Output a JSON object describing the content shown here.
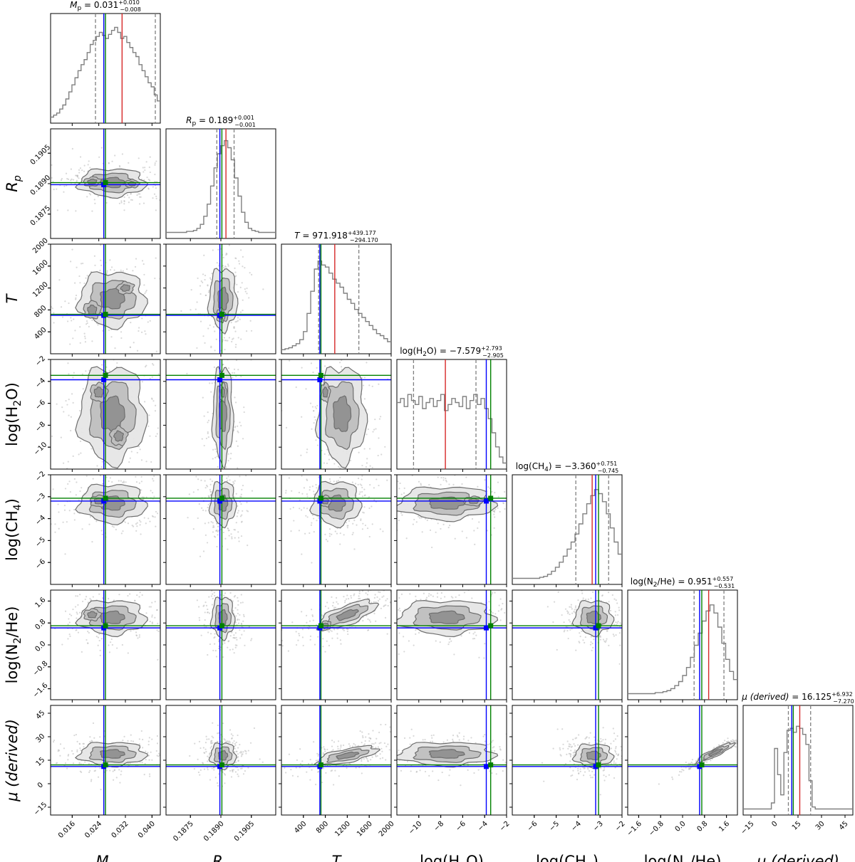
{
  "chart_data": {
    "type": "corner",
    "colors": {
      "hist": "#808080",
      "contour": "#808080",
      "median": "#d62728",
      "quantile": "#808080",
      "truth_blue": "#0000ff",
      "truth_green": "#008000"
    },
    "parameters": [
      {
        "key": "Mp",
        "label": "M",
        "sub": "p",
        "italic": true,
        "range": [
          0.0095,
          0.0425
        ],
        "ticks": [
          0.016,
          0.024,
          0.032,
          0.04
        ],
        "tick_labels": [
          "0.016",
          "0.024",
          "0.032",
          "0.040"
        ],
        "log_scale": false,
        "title_main": "M",
        "title_sub": "p",
        "title_value": "= 0.031",
        "title_plus": "+0.010",
        "title_minus": "−0.008",
        "median": 0.031,
        "q16": 0.023,
        "q84": 0.041,
        "truth_blue": 0.0255,
        "truth_green": 0.026,
        "hist": [
          0.06,
          0.08,
          0.1,
          0.14,
          0.18,
          0.24,
          0.31,
          0.38,
          0.45,
          0.52,
          0.58,
          0.63,
          0.7,
          0.78,
          0.82,
          0.86,
          0.9,
          0.87,
          0.84,
          0.88,
          0.92,
          0.95,
          0.9,
          0.84,
          0.86,
          0.8,
          0.75,
          0.7,
          0.66,
          0.58,
          0.52,
          0.46,
          0.4,
          0.36,
          0.28,
          0.22
        ]
      },
      {
        "key": "Rp",
        "label": "R",
        "sub": "p",
        "italic": true,
        "range": [
          0.1863,
          0.1917
        ],
        "ticks": [
          0.1875,
          0.189,
          0.1905
        ],
        "tick_labels": [
          "0.1875",
          "0.1890",
          "0.1905"
        ],
        "title_main": "R",
        "title_sub": "p",
        "title_value": "= 0.189",
        "title_plus": "+0.001",
        "title_minus": "−0.001",
        "median": 0.18925,
        "q16": 0.1888,
        "q84": 0.18965,
        "truth_blue": 0.18895,
        "truth_green": 0.18905,
        "hist": [
          0.06,
          0.06,
          0.06,
          0.06,
          0.06,
          0.06,
          0.07,
          0.07,
          0.08,
          0.1,
          0.14,
          0.22,
          0.34,
          0.52,
          0.7,
          0.84,
          0.92,
          0.97,
          0.9,
          0.78,
          0.6,
          0.42,
          0.26,
          0.16,
          0.1,
          0.08,
          0.07,
          0.06,
          0.06,
          0.06,
          0.06,
          0.06
        ]
      },
      {
        "key": "T",
        "label": "T",
        "sub": "",
        "italic": true,
        "range": [
          0,
          2000
        ],
        "ticks": [
          400,
          800,
          1200,
          1600,
          2000
        ],
        "tick_labels": [
          "400",
          "800",
          "1200",
          "1600",
          "2000"
        ],
        "title_main": "T",
        "title_sub": "",
        "title_value": "= 971.918",
        "title_plus": "+439.177",
        "title_minus": "−294.170",
        "median": 972,
        "q16": 678,
        "q84": 1411,
        "truth_blue": 700,
        "truth_green": 720,
        "hist": [
          0.04,
          0.05,
          0.06,
          0.08,
          0.1,
          0.14,
          0.22,
          0.4,
          0.62,
          0.84,
          0.92,
          0.88,
          0.86,
          0.8,
          0.74,
          0.7,
          0.66,
          0.6,
          0.54,
          0.5,
          0.44,
          0.4,
          0.36,
          0.32,
          0.28,
          0.24,
          0.2,
          0.18,
          0.15,
          0.12
        ]
      },
      {
        "key": "H2O",
        "label": "log(H",
        "sub": "2",
        "label_tail": "O)",
        "italic": false,
        "range": [
          -12,
          -2
        ],
        "ticks": [
          -10,
          -8,
          -6,
          -4,
          -2
        ],
        "tick_labels": [
          "−10",
          "−8",
          "−6",
          "−4",
          "−2"
        ],
        "title_main": "log(H",
        "title_sub": "2",
        "title_tail": "O)",
        "title_value": "= −7.579",
        "title_plus": "+2.793",
        "title_minus": "−2.905",
        "median": -7.579,
        "q16": -10.48,
        "q84": -4.79,
        "truth_blue": -3.85,
        "truth_green": -3.45,
        "hist": [
          0.66,
          0.7,
          0.62,
          0.74,
          0.68,
          0.64,
          0.72,
          0.6,
          0.66,
          0.7,
          0.62,
          0.68,
          0.74,
          0.58,
          0.64,
          0.7,
          0.66,
          0.62,
          0.72,
          0.6,
          0.68,
          0.74,
          0.64,
          0.7,
          0.6,
          0.5,
          0.36,
          0.22,
          0.12,
          0.06
        ]
      },
      {
        "key": "CH4",
        "label": "log(CH",
        "sub": "4",
        "label_tail": ")",
        "italic": false,
        "range": [
          -7,
          -2
        ],
        "ticks": [
          -6,
          -5,
          -4,
          -3,
          -2
        ],
        "tick_labels": [
          "−6",
          "−5",
          "−4",
          "−3",
          "−2"
        ],
        "title_main": "log(CH",
        "title_sub": "4",
        "title_tail": ")",
        "title_value": "= −3.360",
        "title_plus": "+0.751",
        "title_minus": "−0.745",
        "median": -3.36,
        "q16": -4.105,
        "q84": -2.609,
        "truth_blue": -3.2,
        "truth_green": -3.07,
        "hist": [
          0.06,
          0.06,
          0.06,
          0.06,
          0.06,
          0.06,
          0.06,
          0.07,
          0.08,
          0.1,
          0.13,
          0.17,
          0.22,
          0.28,
          0.35,
          0.42,
          0.5,
          0.6,
          0.7,
          0.8,
          0.88,
          0.94,
          0.9,
          0.82,
          0.7,
          0.56,
          0.42,
          0.3
        ]
      },
      {
        "key": "N2He",
        "label": "log(N",
        "sub": "2",
        "label_tail": "/He)",
        "italic": false,
        "range": [
          -2,
          2
        ],
        "ticks": [
          -1.6,
          -0.8,
          0.0,
          0.8,
          1.6
        ],
        "tick_labels": [
          "−1.6",
          "−0.8",
          "0.0",
          "0.8",
          "1.6"
        ],
        "title_main": "log(N",
        "title_sub": "2",
        "title_tail": "/He)",
        "title_value": "= 0.951",
        "title_plus": "+0.557",
        "title_minus": "−0.531",
        "median": 0.951,
        "q16": 0.42,
        "q84": 1.508,
        "truth_blue": 0.62,
        "truth_green": 0.7,
        "hist": [
          0.06,
          0.06,
          0.06,
          0.06,
          0.06,
          0.06,
          0.06,
          0.07,
          0.07,
          0.08,
          0.09,
          0.11,
          0.14,
          0.18,
          0.24,
          0.32,
          0.42,
          0.54,
          0.66,
          0.78,
          0.88,
          0.94,
          0.86,
          0.72,
          0.56,
          0.4,
          0.28,
          0.2
        ]
      },
      {
        "key": "mu",
        "label": "μ (derived)",
        "sub": "",
        "italic": true,
        "range": [
          -20,
          50
        ],
        "ticks": [
          -15,
          0,
          15,
          30,
          45
        ],
        "tick_labels": [
          "−15",
          "0",
          "15",
          "30",
          "45"
        ],
        "title_main": "μ (derived)",
        "title_sub": "",
        "title_value": "= 16.125",
        "title_plus": "+6.932",
        "title_minus": "−7.270",
        "median": 16.125,
        "q16": 8.855,
        "q84": 23.057,
        "truth_blue": 11.0,
        "truth_green": 12.0,
        "hist": [
          0.06,
          0.06,
          0.06,
          0.06,
          0.06,
          0.06,
          0.06,
          0.06,
          0.06,
          0.12,
          0.66,
          0.4,
          0.2,
          0.62,
          0.84,
          0.86,
          0.82,
          0.88,
          0.86,
          0.8,
          0.7,
          0.34,
          0.08,
          0.06,
          0.06,
          0.06,
          0.06,
          0.06,
          0.06,
          0.06,
          0.06,
          0.06,
          0.06,
          0.06,
          0.06
        ]
      }
    ],
    "pairs": [
      {
        "x": "Mp",
        "y": "Rp",
        "blobs": [
          [
            0.028,
            0.18905,
            0.016,
            0.0011,
            0
          ],
          [
            0.022,
            0.1891,
            0.006,
            0.0006,
            0.2
          ],
          [
            0.034,
            0.189,
            0.005,
            0.0005,
            -0.1
          ]
        ]
      },
      {
        "x": "Mp",
        "y": "T",
        "blobs": [
          [
            0.028,
            1000,
            0.016,
            800,
            0
          ],
          [
            0.022,
            800,
            0.006,
            400,
            0.1
          ],
          [
            0.032,
            1200,
            0.006,
            300,
            0.2
          ]
        ]
      },
      {
        "x": "Rp",
        "y": "T",
        "blobs": [
          [
            0.1891,
            1000,
            0.0011,
            900,
            0
          ],
          [
            0.189,
            700,
            0.0005,
            300,
            0
          ]
        ]
      },
      {
        "x": "Mp",
        "y": "H2O",
        "blobs": [
          [
            0.028,
            -7,
            0.016,
            7,
            0
          ],
          [
            0.024,
            -5,
            0.006,
            2,
            0
          ],
          [
            0.03,
            -9,
            0.006,
            2,
            0
          ]
        ]
      },
      {
        "x": "Rp",
        "y": "H2O",
        "blobs": [
          [
            0.1891,
            -7,
            0.0008,
            7,
            0
          ],
          [
            0.1891,
            -5,
            0.0004,
            2,
            0
          ]
        ]
      },
      {
        "x": "T",
        "y": "H2O",
        "blobs": [
          [
            1100,
            -7,
            700,
            7,
            0
          ],
          [
            800,
            -5,
            200,
            2,
            0
          ]
        ]
      },
      {
        "x": "Mp",
        "y": "CH4",
        "blobs": [
          [
            0.028,
            -3.3,
            0.016,
            1.4,
            0
          ],
          [
            0.024,
            -3.2,
            0.006,
            0.6,
            0
          ]
        ]
      },
      {
        "x": "Rp",
        "y": "CH4",
        "blobs": [
          [
            0.1891,
            -3.3,
            0.001,
            1.6,
            0
          ]
        ]
      },
      {
        "x": "T",
        "y": "CH4",
        "blobs": [
          [
            1000,
            -3.3,
            700,
            1.6,
            0
          ],
          [
            800,
            -3.2,
            250,
            0.6,
            0
          ]
        ]
      },
      {
        "x": "H2O",
        "y": "CH4",
        "blobs": [
          [
            -7.5,
            -3.3,
            7,
            1.2,
            0
          ],
          [
            -5,
            -3.2,
            2,
            0.5,
            0
          ]
        ]
      },
      {
        "x": "Mp",
        "y": "N2He",
        "blobs": [
          [
            0.028,
            1.0,
            0.016,
            1.0,
            0
          ],
          [
            0.022,
            1.1,
            0.006,
            0.5,
            0
          ]
        ]
      },
      {
        "x": "Rp",
        "y": "N2He",
        "blobs": [
          [
            0.1891,
            1.0,
            0.0009,
            1.2,
            0
          ]
        ]
      },
      {
        "x": "T",
        "y": "N2He",
        "blobs": [
          [
            1200,
            1.1,
            900,
            1.1,
            0.7
          ],
          [
            800,
            0.7,
            250,
            0.6,
            0.5
          ]
        ]
      },
      {
        "x": "H2O",
        "y": "N2He",
        "blobs": [
          [
            -7.5,
            1.0,
            7,
            1.0,
            0
          ]
        ]
      },
      {
        "x": "CH4",
        "y": "N2He",
        "blobs": [
          [
            -3.3,
            1.0,
            1.4,
            1.0,
            0
          ]
        ]
      },
      {
        "x": "Mp",
        "y": "mu",
        "blobs": [
          [
            0.028,
            19,
            0.016,
            12,
            0
          ]
        ]
      },
      {
        "x": "Rp",
        "y": "mu",
        "blobs": [
          [
            0.1891,
            18,
            0.001,
            13,
            0
          ]
        ]
      },
      {
        "x": "T",
        "y": "mu",
        "blobs": [
          [
            1200,
            18,
            900,
            12,
            0.6
          ]
        ]
      },
      {
        "x": "H2O",
        "y": "mu",
        "blobs": [
          [
            -7.5,
            19,
            7,
            12,
            0
          ]
        ]
      },
      {
        "x": "CH4",
        "y": "mu",
        "blobs": [
          [
            -3.3,
            18,
            1.4,
            12,
            0
          ]
        ]
      },
      {
        "x": "N2He",
        "y": "mu",
        "blobs": [
          [
            1.2,
            20,
            1.2,
            12,
            0.97
          ]
        ]
      }
    ]
  }
}
